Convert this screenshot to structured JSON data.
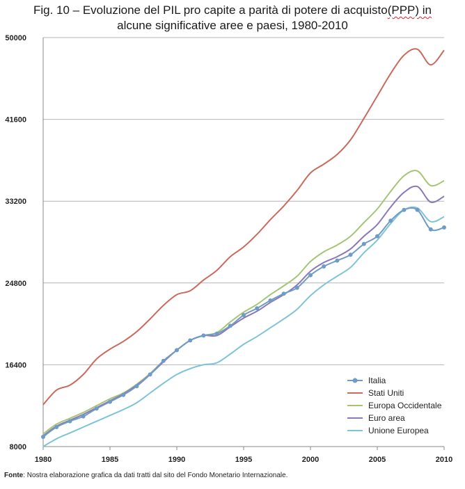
{
  "title": {
    "line1_prefix": "Fig. 10 – Evoluzione del PIL pro capite a parità di potere di acquisto",
    "line1_suffix": "(PPP) in",
    "line2": "alcune significative aree e paesi, 1980-2010"
  },
  "source": {
    "label": "Fonte",
    "text": ": Nostra elaborazione grafica da dati tratti dal sito del Fondo Monetario Internazionale."
  },
  "chart_data": {
    "type": "line",
    "x": [
      1980,
      1981,
      1982,
      1983,
      1984,
      1985,
      1986,
      1987,
      1988,
      1989,
      1990,
      1991,
      1992,
      1993,
      1994,
      1995,
      1996,
      1997,
      1998,
      1999,
      2000,
      2001,
      2002,
      2003,
      2004,
      2005,
      2006,
      2007,
      2008,
      2009,
      2010
    ],
    "xticks": [
      1980,
      1985,
      1990,
      1995,
      2000,
      2005,
      2010
    ],
    "yticks": [
      8000,
      16400,
      24800,
      33200,
      41600,
      50000
    ],
    "xlim": [
      1980,
      2010
    ],
    "ylim": [
      8000,
      50000
    ],
    "grid": "horizontal",
    "legend_position": "bottom-right",
    "series": [
      {
        "name": "Italia",
        "color": "#6f9bc7",
        "markers": true,
        "values": [
          9000,
          10000,
          10600,
          11100,
          11900,
          12600,
          13300,
          14200,
          15400,
          16800,
          17900,
          18900,
          19400,
          19600,
          20400,
          21500,
          22200,
          23000,
          23700,
          24300,
          25600,
          26500,
          27100,
          27700,
          28800,
          29600,
          31200,
          32300,
          32300,
          30300,
          30500
        ]
      },
      {
        "name": "Stati Uniti",
        "color": "#c96a5e",
        "markers": false,
        "values": [
          12300,
          13800,
          14300,
          15400,
          17000,
          18000,
          18800,
          19800,
          21100,
          22500,
          23600,
          24000,
          25100,
          26100,
          27500,
          28500,
          29800,
          31300,
          32700,
          34300,
          36100,
          37000,
          38000,
          39500,
          41700,
          44000,
          46300,
          48200,
          48800,
          47200,
          48700
        ]
      },
      {
        "name": "Europa Occidentale",
        "color": "#a7c474",
        "markers": false,
        "values": [
          9300,
          10300,
          10900,
          11500,
          12200,
          12900,
          13500,
          14400,
          15500,
          16800,
          17900,
          18900,
          19400,
          19700,
          20800,
          21800,
          22600,
          23600,
          24500,
          25500,
          27000,
          28000,
          28700,
          29600,
          31000,
          32400,
          34200,
          35800,
          36300,
          34800,
          35300
        ]
      },
      {
        "name": "Euro area",
        "color": "#8a78b8",
        "markers": false,
        "values": [
          9100,
          10100,
          10700,
          11300,
          12000,
          12700,
          13400,
          14300,
          15400,
          16700,
          17900,
          18900,
          19400,
          19400,
          20300,
          21200,
          21900,
          22800,
          23600,
          24600,
          26000,
          26900,
          27500,
          28300,
          29600,
          30800,
          32600,
          34100,
          34700,
          33100,
          33700
        ]
      },
      {
        "name": "Unione Europea",
        "color": "#7ec4d6",
        "markers": false,
        "values": [
          8000,
          8800,
          9400,
          10000,
          10600,
          11200,
          11800,
          12500,
          13500,
          14500,
          15400,
          16000,
          16400,
          16600,
          17500,
          18500,
          19300,
          20200,
          21100,
          22100,
          23500,
          24600,
          25500,
          26400,
          27900,
          29200,
          30900,
          32300,
          32500,
          31100,
          31600
        ]
      }
    ]
  }
}
